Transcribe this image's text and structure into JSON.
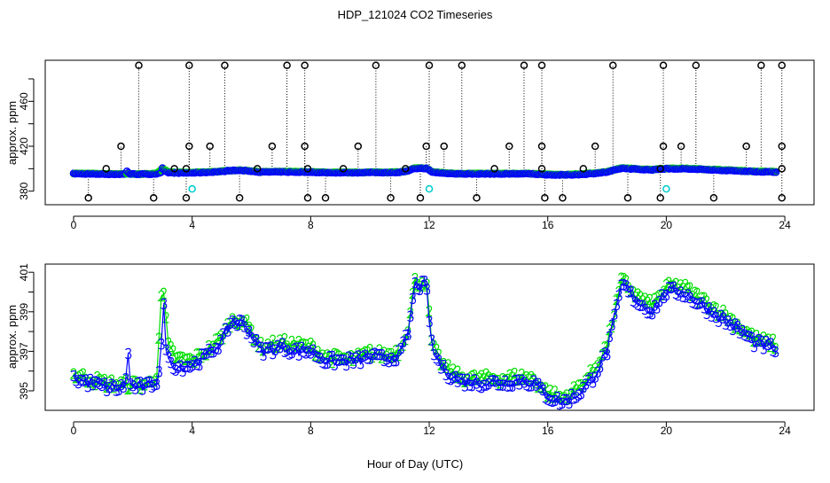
{
  "chart_data": [
    {
      "type": "scatter",
      "title": "HDP_121024  CO2 Timeseries",
      "xlabel": "",
      "ylabel": "approx. ppm",
      "xlim": [
        -1,
        25
      ],
      "ylim": [
        371,
        498
      ],
      "x_ticks": [
        0,
        4,
        8,
        12,
        16,
        20,
        24
      ],
      "y_ticks": [
        380,
        400,
        420,
        440,
        460,
        480
      ],
      "y_tick_labels": [
        "380",
        "420",
        "460"
      ],
      "series_colors": {
        "2": "#00dd00",
        "3": "#0000ff",
        "outlier": "#000000",
        "flag": "#00cccc"
      },
      "outliers": [
        [
          2.2,
          492
        ],
        [
          3.9,
          492
        ],
        [
          5.1,
          492
        ],
        [
          7.2,
          492
        ],
        [
          7.8,
          492
        ],
        [
          10.2,
          492
        ],
        [
          12.0,
          492
        ],
        [
          13.1,
          492
        ],
        [
          15.2,
          492
        ],
        [
          15.8,
          492
        ],
        [
          18.2,
          492
        ],
        [
          19.9,
          492
        ],
        [
          21.0,
          492
        ],
        [
          23.2,
          492
        ],
        [
          23.9,
          492
        ],
        [
          1.6,
          420
        ],
        [
          3.9,
          420
        ],
        [
          4.6,
          420
        ],
        [
          6.7,
          420
        ],
        [
          7.8,
          420
        ],
        [
          9.6,
          420
        ],
        [
          11.9,
          420
        ],
        [
          12.5,
          420
        ],
        [
          14.7,
          420
        ],
        [
          15.8,
          420
        ],
        [
          17.6,
          420
        ],
        [
          19.9,
          420
        ],
        [
          20.5,
          420
        ],
        [
          22.7,
          420
        ],
        [
          23.9,
          420
        ],
        [
          1.1,
          400
        ],
        [
          3.4,
          400
        ],
        [
          3.8,
          400
        ],
        [
          6.2,
          400
        ],
        [
          7.9,
          400
        ],
        [
          9.1,
          400
        ],
        [
          11.2,
          400
        ],
        [
          14.2,
          400
        ],
        [
          15.8,
          400
        ],
        [
          17.2,
          400
        ],
        [
          19.8,
          400
        ],
        [
          23.9,
          400
        ],
        [
          0.5,
          374
        ],
        [
          2.7,
          374
        ],
        [
          3.8,
          374
        ],
        [
          5.6,
          374
        ],
        [
          7.9,
          374
        ],
        [
          8.5,
          374
        ],
        [
          10.7,
          374
        ],
        [
          11.7,
          374
        ],
        [
          13.6,
          374
        ],
        [
          15.9,
          374
        ],
        [
          16.5,
          374
        ],
        [
          18.7,
          374
        ],
        [
          19.8,
          374
        ],
        [
          21.6,
          374
        ],
        [
          23.9,
          374
        ]
      ],
      "flagged": [
        [
          4.0,
          382
        ],
        [
          12.0,
          382
        ],
        [
          20.0,
          382
        ]
      ]
    },
    {
      "type": "line",
      "title": "",
      "xlabel": "Hour of Day (UTC)",
      "ylabel": "approx. ppm",
      "xlim": [
        -1,
        25
      ],
      "ylim": [
        394,
        401.4
      ],
      "x_ticks": [
        0,
        4,
        8,
        12,
        16,
        20,
        24
      ],
      "y_ticks": [
        395,
        396,
        397,
        398,
        399,
        400,
        401
      ],
      "y_tick_labels": [
        "395",
        "397",
        "399",
        "401"
      ],
      "series": [
        {
          "name": "3",
          "marker": "3",
          "color": "#0000ff",
          "x": [
            0,
            0.5,
            1,
            1.5,
            1.75,
            1.8,
            1.9,
            2,
            2.5,
            2.8,
            2.95,
            3.0,
            3.1,
            3.2,
            3.5,
            4,
            4.5,
            5,
            5.3,
            5.7,
            6,
            6.3,
            7,
            7.5,
            8,
            8.5,
            9,
            9.5,
            10,
            10.5,
            11,
            11.3,
            11.5,
            11.9,
            12.1,
            12.5,
            13,
            13.5,
            14,
            14.5,
            15,
            15.5,
            16,
            16.5,
            17,
            17.5,
            18,
            18.5,
            19,
            19.5,
            20,
            20.5,
            21,
            21.5,
            22,
            22.5,
            23,
            23.5,
            23.75
          ],
          "values": [
            395.6,
            395.4,
            395.2,
            395.1,
            395.2,
            397.8,
            395.3,
            395.2,
            395.2,
            395.5,
            396.5,
            400.3,
            397.5,
            396.5,
            396.2,
            396.3,
            396.8,
            397.5,
            398.5,
            398.4,
            397.8,
            397.0,
            397.2,
            397.0,
            397.0,
            396.5,
            396.5,
            396.5,
            396.7,
            396.6,
            396.8,
            398.0,
            400.3,
            400.3,
            397.0,
            396.0,
            395.5,
            395.4,
            395.4,
            395.4,
            395.5,
            395.4,
            394.7,
            394.4,
            394.8,
            395.6,
            397.0,
            400.4,
            399.5,
            399.0,
            400.0,
            400.0,
            399.5,
            399.0,
            398.5,
            398.0,
            397.4,
            397.2,
            397.0
          ]
        },
        {
          "name": "2",
          "marker": "2",
          "color": "#00dd00",
          "x": [
            0,
            0.5,
            1,
            1.5,
            2,
            2.5,
            2.8,
            3.0,
            3.2,
            3.5,
            4,
            4.5,
            5,
            5.3,
            5.7,
            6,
            6.3,
            7,
            7.5,
            8,
            8.5,
            9,
            9.5,
            10,
            10.5,
            11,
            11.3,
            11.5,
            11.9,
            12.1,
            12.5,
            13,
            13.5,
            14,
            14.5,
            15,
            15.5,
            16,
            16.5,
            17,
            17.5,
            18,
            18.5,
            19,
            19.5,
            20,
            20.5,
            21,
            21.5,
            22,
            22.5,
            23,
            23.5,
            23.75
          ],
          "values": [
            395.8,
            395.6,
            395.4,
            395.3,
            395.3,
            395.3,
            395.8,
            400.5,
            397.2,
            396.6,
            396.5,
            397.0,
            397.7,
            398.5,
            398.6,
            398.0,
            397.2,
            397.4,
            397.3,
            397.2,
            396.7,
            396.6,
            396.6,
            396.9,
            396.8,
            397.0,
            398.2,
            400.5,
            400.5,
            397.2,
            396.2,
            395.7,
            395.6,
            395.6,
            395.6,
            395.7,
            395.6,
            394.9,
            394.6,
            395.1,
            395.9,
            397.3,
            400.6,
            399.8,
            399.3,
            400.2,
            400.3,
            399.8,
            399.3,
            398.8,
            398.2,
            397.6,
            397.4,
            397.3
          ]
        }
      ]
    }
  ]
}
